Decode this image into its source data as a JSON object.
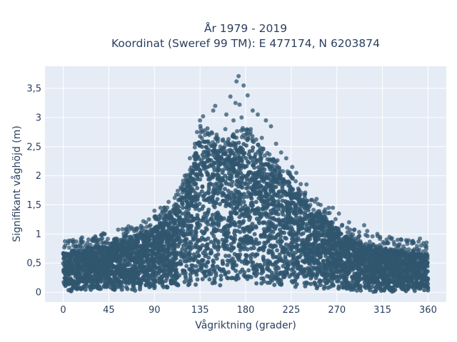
{
  "chart_data": {
    "type": "scatter",
    "title_line1": "År 1979 - 2019",
    "title_line2": "Koordinat (Sweref 99 TM): E 477174, N 6203874",
    "xlabel": "Vågriktning (grader)",
    "ylabel": "Signifikant våghöjd (m)",
    "xlim": [
      -18,
      378
    ],
    "ylim": [
      -0.17,
      3.88
    ],
    "x_ticks": [
      0,
      45,
      90,
      135,
      180,
      225,
      270,
      315,
      360
    ],
    "x_tick_labels": [
      "0",
      "45",
      "90",
      "135",
      "180",
      "225",
      "270",
      "315",
      "360"
    ],
    "y_ticks": [
      0,
      0.5,
      1,
      1.5,
      2,
      2.5,
      3,
      3.5
    ],
    "y_tick_labels": [
      "0",
      "0,5",
      "1",
      "1,5",
      "2",
      "2,5",
      "3",
      "3,5"
    ],
    "grid": true,
    "marker_color": "#30566f",
    "plot_bg": "#e5ecf6",
    "grid_color": "#ffffff",
    "text_color": "#2a3f5f",
    "envelope": {
      "x": [
        0,
        20,
        45,
        70,
        90,
        110,
        125,
        135,
        145,
        160,
        170,
        180,
        195,
        210,
        225,
        240,
        255,
        270,
        290,
        315,
        340,
        360
      ],
      "upper": [
        0.62,
        0.7,
        0.78,
        0.92,
        1.05,
        1.38,
        1.95,
        2.65,
        2.55,
        2.35,
        2.55,
        2.6,
        2.3,
        2.05,
        1.8,
        1.5,
        1.25,
        1.0,
        0.8,
        0.7,
        0.65,
        0.62
      ],
      "lower": [
        0.1,
        0.1,
        0.12,
        0.12,
        0.15,
        0.18,
        0.2,
        0.22,
        0.22,
        0.22,
        0.22,
        0.22,
        0.22,
        0.22,
        0.2,
        0.18,
        0.15,
        0.12,
        0.1,
        0.1,
        0.1,
        0.1
      ]
    },
    "outliers": [
      {
        "x": 173,
        "y": 3.71
      },
      {
        "x": 171,
        "y": 3.62
      },
      {
        "x": 178,
        "y": 3.55
      },
      {
        "x": 165,
        "y": 3.36
      },
      {
        "x": 170,
        "y": 3.25
      },
      {
        "x": 174,
        "y": 3.22
      },
      {
        "x": 182,
        "y": 3.38
      },
      {
        "x": 187,
        "y": 3.12
      },
      {
        "x": 192,
        "y": 3.05
      },
      {
        "x": 150,
        "y": 3.2
      },
      {
        "x": 148,
        "y": 3.12
      },
      {
        "x": 161,
        "y": 3.05
      },
      {
        "x": 138,
        "y": 3.02
      },
      {
        "x": 200,
        "y": 2.95
      },
      {
        "x": 205,
        "y": 2.85
      },
      {
        "x": 210,
        "y": 2.55
      },
      {
        "x": 215,
        "y": 2.4
      },
      {
        "x": 220,
        "y": 2.3
      },
      {
        "x": 226,
        "y": 2.15
      },
      {
        "x": 230,
        "y": 2.05
      },
      {
        "x": 240,
        "y": 1.85
      },
      {
        "x": 250,
        "y": 1.6
      },
      {
        "x": 262,
        "y": 1.45
      },
      {
        "x": 266,
        "y": 1.45
      },
      {
        "x": 272,
        "y": 1.35
      },
      {
        "x": 282,
        "y": 1.2
      },
      {
        "x": 297,
        "y": 1.15
      },
      {
        "x": 300,
        "y": 1.05
      },
      {
        "x": 310,
        "y": 1.0
      },
      {
        "x": 322,
        "y": 0.95
      },
      {
        "x": 330,
        "y": 0.9
      },
      {
        "x": 345,
        "y": 0.88
      },
      {
        "x": 352,
        "y": 0.92
      },
      {
        "x": 5,
        "y": 0.88
      },
      {
        "x": 10,
        "y": 0.86
      },
      {
        "x": 22,
        "y": 0.8
      },
      {
        "x": 30,
        "y": 0.92
      },
      {
        "x": 40,
        "y": 0.85
      },
      {
        "x": 52,
        "y": 0.92
      },
      {
        "x": 62,
        "y": 0.98
      },
      {
        "x": 70,
        "y": 1.05
      },
      {
        "x": 80,
        "y": 1.05
      },
      {
        "x": 86,
        "y": 1.15
      },
      {
        "x": 90,
        "y": 1.4
      },
      {
        "x": 96,
        "y": 1.45
      },
      {
        "x": 100,
        "y": 1.45
      },
      {
        "x": 104,
        "y": 1.55
      },
      {
        "x": 110,
        "y": 1.62
      },
      {
        "x": 116,
        "y": 1.8
      },
      {
        "x": 120,
        "y": 2.0
      },
      {
        "x": 125,
        "y": 2.3
      },
      {
        "x": 130,
        "y": 2.55
      },
      {
        "x": 132,
        "y": 2.75
      },
      {
        "x": 135,
        "y": 2.95
      },
      {
        "x": 140,
        "y": 2.7
      },
      {
        "x": 144,
        "y": 2.55
      },
      {
        "x": 155,
        "y": 2.5
      },
      {
        "x": 160,
        "y": 2.8
      },
      {
        "x": 168,
        "y": 2.95
      },
      {
        "x": 176,
        "y": 3.0
      },
      {
        "x": 185,
        "y": 2.8
      },
      {
        "x": 196,
        "y": 2.65
      }
    ]
  }
}
